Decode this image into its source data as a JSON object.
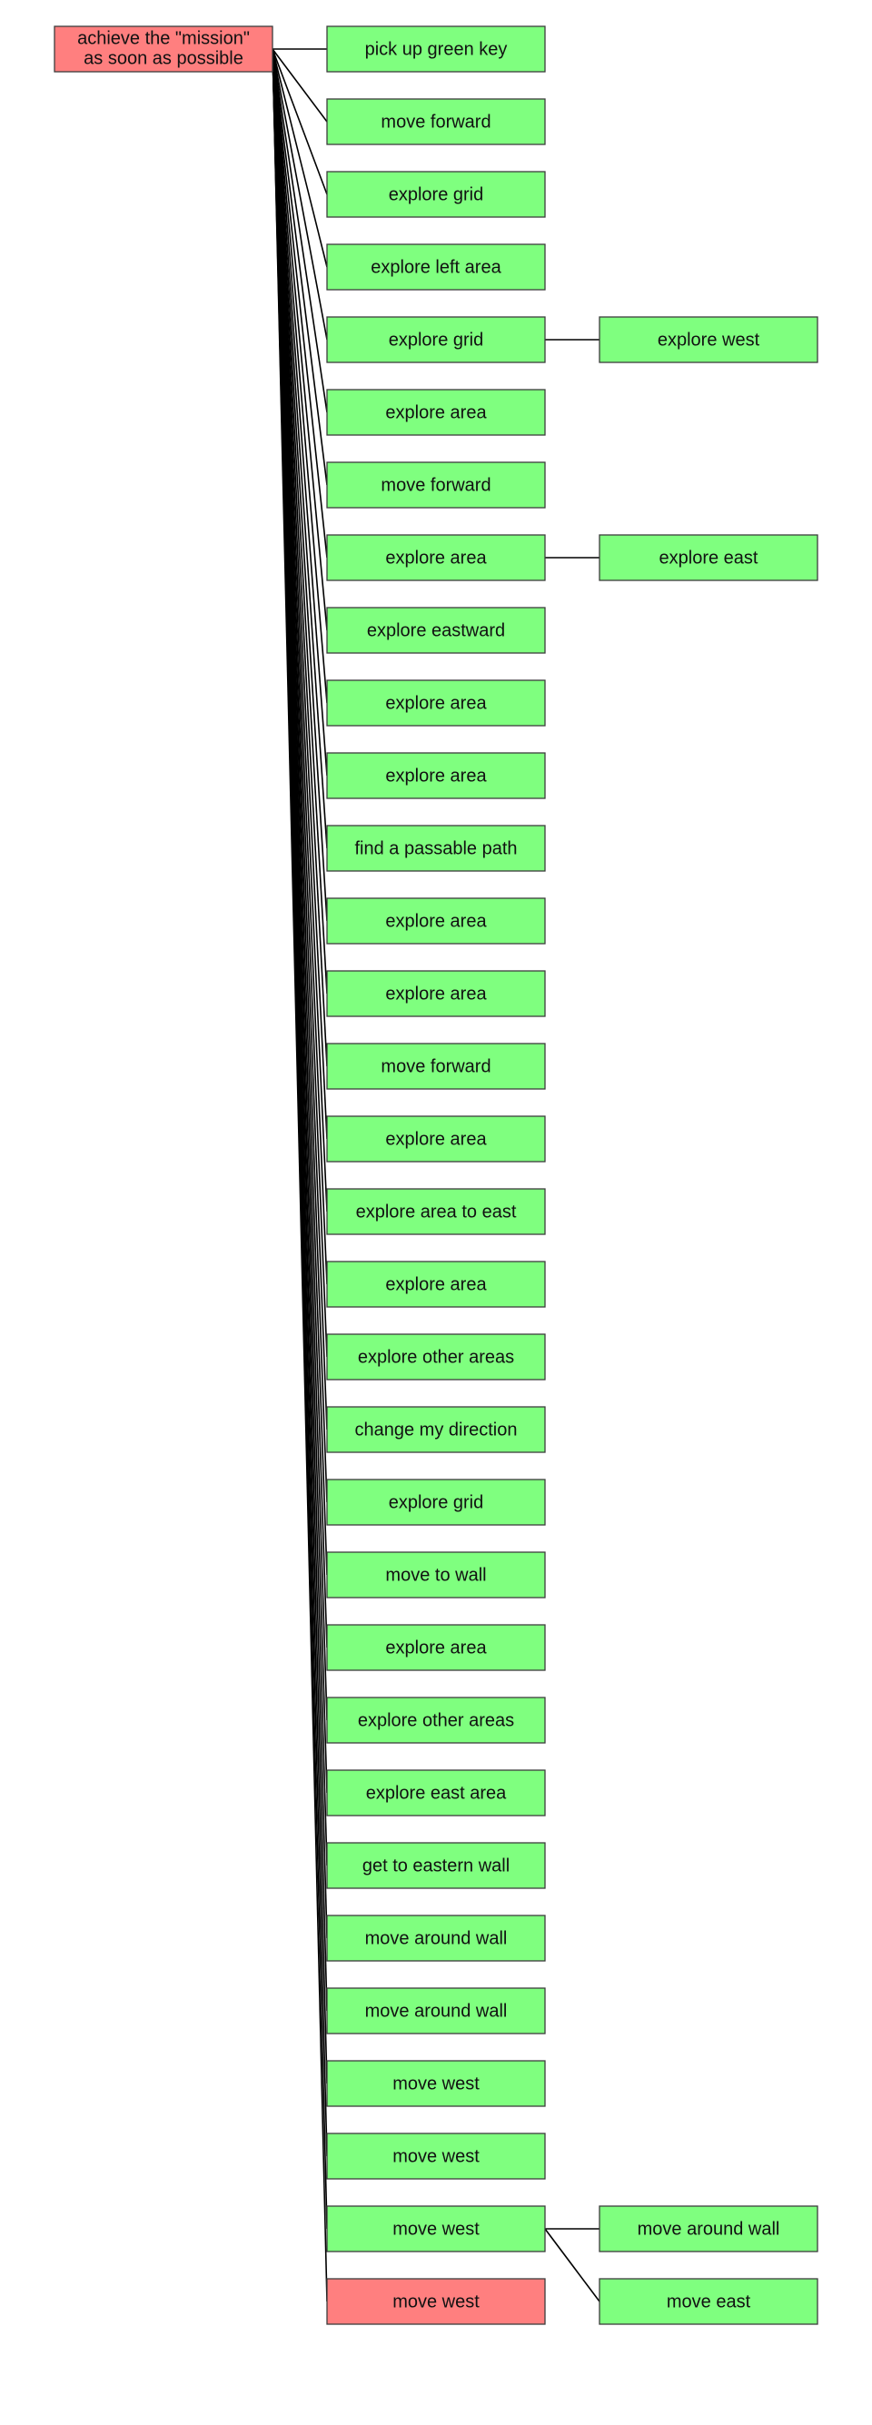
{
  "colors": {
    "goal_fill": "#ff7f7f",
    "subgoal_fill": "#7fff7f",
    "border": "#3c3c3c",
    "edge": "#000000"
  },
  "root": {
    "label_lines": [
      "achieve the \"mission\"",
      "as soon as possible"
    ],
    "status": "goal"
  },
  "children": [
    {
      "label": "pick up green key",
      "status": "subgoal",
      "children": []
    },
    {
      "label": "move forward",
      "status": "subgoal",
      "children": []
    },
    {
      "label": "explore grid",
      "status": "subgoal",
      "children": []
    },
    {
      "label": "explore left area",
      "status": "subgoal",
      "children": []
    },
    {
      "label": "explore grid",
      "status": "subgoal",
      "children": [
        {
          "label": "explore west",
          "status": "subgoal"
        }
      ]
    },
    {
      "label": "explore area",
      "status": "subgoal",
      "children": []
    },
    {
      "label": "move forward",
      "status": "subgoal",
      "children": []
    },
    {
      "label": "explore area",
      "status": "subgoal",
      "children": [
        {
          "label": "explore east",
          "status": "subgoal"
        }
      ]
    },
    {
      "label": "explore eastward",
      "status": "subgoal",
      "children": []
    },
    {
      "label": "explore area",
      "status": "subgoal",
      "children": []
    },
    {
      "label": "explore area",
      "status": "subgoal",
      "children": []
    },
    {
      "label": "find a passable path",
      "status": "subgoal",
      "children": []
    },
    {
      "label": "explore area",
      "status": "subgoal",
      "children": []
    },
    {
      "label": "explore area",
      "status": "subgoal",
      "children": []
    },
    {
      "label": "move forward",
      "status": "subgoal",
      "children": []
    },
    {
      "label": "explore area",
      "status": "subgoal",
      "children": []
    },
    {
      "label": "explore area to east",
      "status": "subgoal",
      "children": []
    },
    {
      "label": "explore area",
      "status": "subgoal",
      "children": []
    },
    {
      "label": "explore other areas",
      "status": "subgoal",
      "children": []
    },
    {
      "label": "change my direction",
      "status": "subgoal",
      "children": []
    },
    {
      "label": "explore grid",
      "status": "subgoal",
      "children": []
    },
    {
      "label": "move to wall",
      "status": "subgoal",
      "children": []
    },
    {
      "label": "explore area",
      "status": "subgoal",
      "children": []
    },
    {
      "label": "explore other areas",
      "status": "subgoal",
      "children": []
    },
    {
      "label": "explore east area",
      "status": "subgoal",
      "children": []
    },
    {
      "label": "get to eastern wall",
      "status": "subgoal",
      "children": []
    },
    {
      "label": "move around wall",
      "status": "subgoal",
      "children": []
    },
    {
      "label": "move around wall",
      "status": "subgoal",
      "children": []
    },
    {
      "label": "move west",
      "status": "subgoal",
      "children": []
    },
    {
      "label": "move west",
      "status": "subgoal",
      "children": []
    },
    {
      "label": "move west",
      "status": "subgoal",
      "children": [
        {
          "label": "move around wall",
          "status": "subgoal"
        },
        {
          "label": "move east",
          "status": "subgoal"
        }
      ]
    },
    {
      "label": "move west",
      "status": "goal",
      "children": []
    }
  ]
}
